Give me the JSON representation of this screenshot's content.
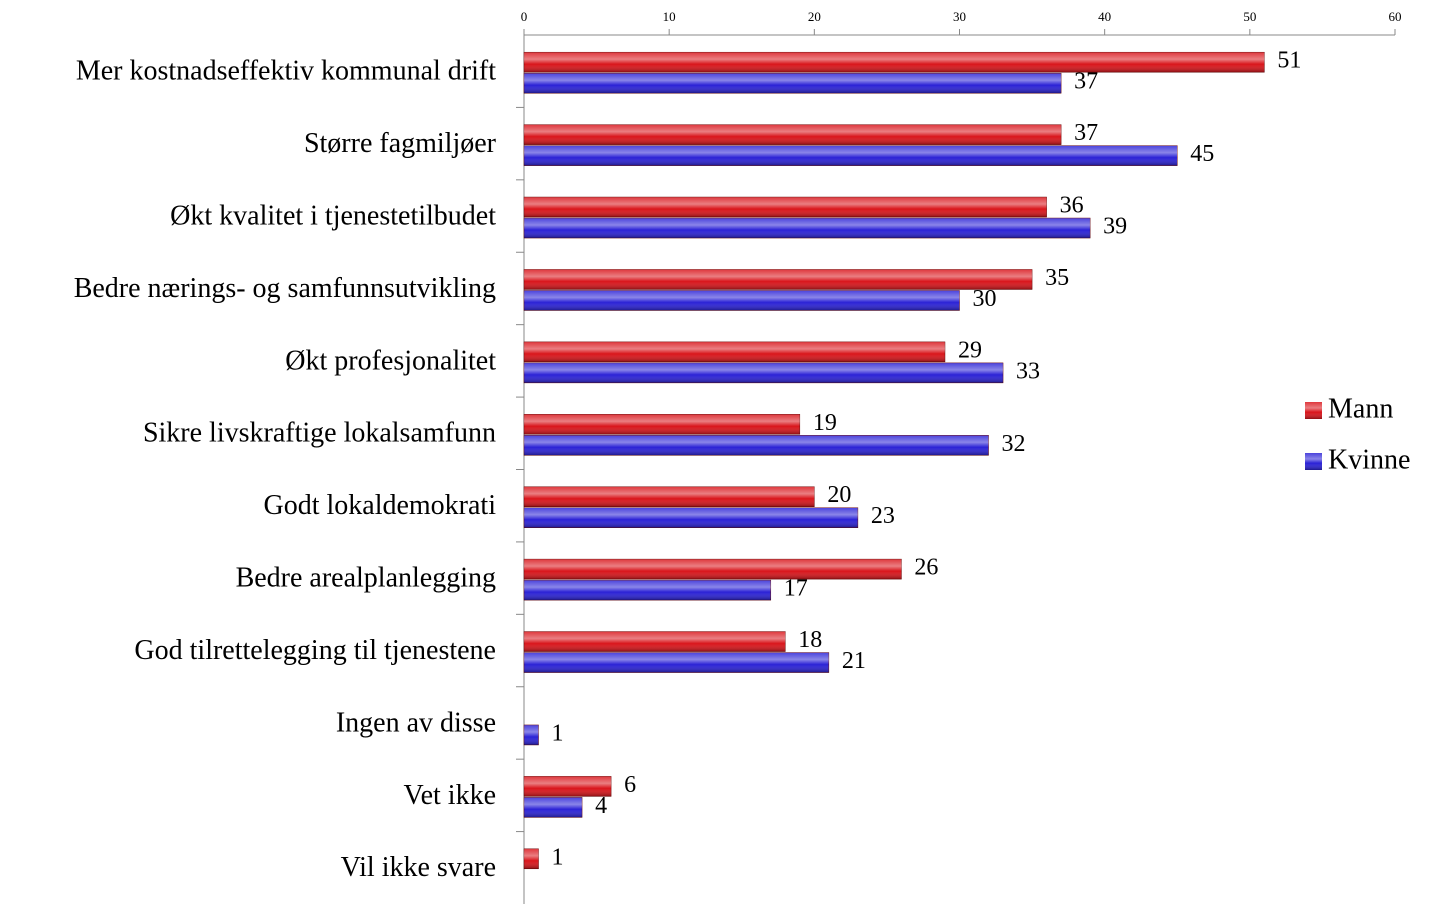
{
  "chart_data": {
    "type": "bar",
    "orientation": "horizontal",
    "categories": [
      "Mer kostnadseffektiv kommunal drift",
      "Større fagmiljøer",
      "Økt kvalitet i tjenestetilbudet",
      "Bedre nærings- og samfunnsutvikling",
      "Økt profesjonalitet",
      "Sikre livskraftige lokalsamfunn",
      "Godt lokaldemokrati",
      "Bedre arealplanlegging",
      "God tilrettelegging til tjenestene",
      "Ingen av disse",
      "Vet ikke",
      "Vil ikke svare"
    ],
    "series": [
      {
        "name": "Mann",
        "color": "#d9151b",
        "values": [
          51,
          37,
          36,
          35,
          29,
          19,
          20,
          26,
          18,
          null,
          6,
          1
        ]
      },
      {
        "name": "Kvinne",
        "color": "#2b22d6",
        "values": [
          37,
          45,
          39,
          30,
          33,
          32,
          23,
          17,
          21,
          1,
          4,
          null
        ]
      }
    ],
    "xlim": [
      0,
      60
    ],
    "xticks": [
      0,
      10,
      20,
      30,
      40,
      50,
      60
    ],
    "legend": "right"
  }
}
